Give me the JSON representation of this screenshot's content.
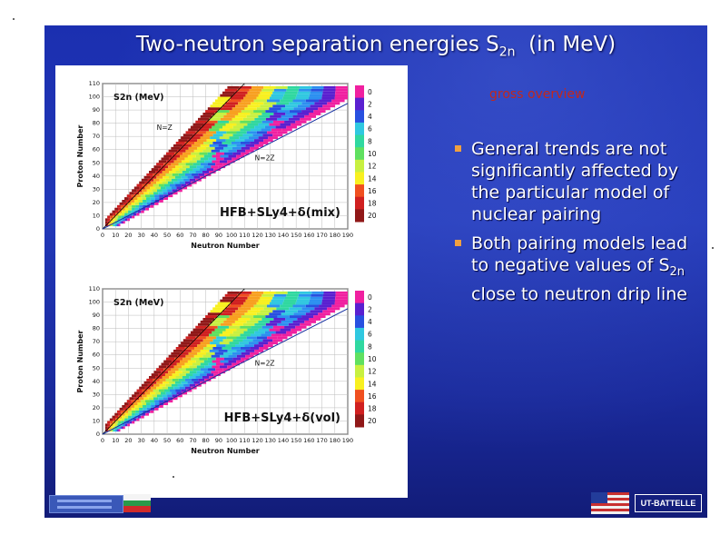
{
  "title": {
    "main": "Two-neutron separation energies S",
    "sub": "2n",
    "tail": "  (in MeV)"
  },
  "subtitle": "gross overview",
  "bullets": [
    {
      "icon": "square-bullet-icon",
      "text": "General trends are not significantly affected by the particular model of nuclear pairing"
    },
    {
      "icon": "square-bullet-icon",
      "text_before": "Both pairing models lead to negative values of S",
      "text_sub": "2n",
      "text_after": " close to neutron drip line"
    }
  ],
  "colors": {
    "slide_bg": "#1b2fb0",
    "subtitle": "#c2281c",
    "bullet": "#f0a040",
    "text": "#ffffff"
  },
  "logos": [
    "logo-left",
    "bulgaria-flag-icon",
    "us-flag-icon",
    "ut-battelle-logo"
  ],
  "logo_ut_text": "UT-BATTELLE",
  "chart_data": [
    {
      "type": "heatmap",
      "xlabel": "Neutron Number",
      "ylabel": "Proton Number",
      "x_ticks": [
        0,
        10,
        20,
        30,
        40,
        50,
        60,
        70,
        80,
        90,
        100,
        110,
        120,
        130,
        140,
        150,
        160,
        170,
        180,
        190
      ],
      "y_ticks": [
        0,
        10,
        20,
        30,
        40,
        50,
        60,
        70,
        80,
        90,
        100,
        110
      ],
      "xlim": [
        0,
        190
      ],
      "ylim": [
        0,
        110
      ],
      "inner_label": "S2n (MeV)",
      "line_labels": [
        "N=Z",
        "N=2Z"
      ],
      "model_label": "HFB+SLy4+δ(mix)",
      "colorbar_ticks": [
        0,
        2,
        4,
        6,
        8,
        10,
        12,
        14,
        16,
        18,
        20
      ]
    },
    {
      "type": "heatmap",
      "xlabel": "Neutron Number",
      "ylabel": "Proton Number",
      "x_ticks": [
        0,
        10,
        20,
        30,
        40,
        50,
        60,
        70,
        80,
        90,
        100,
        110,
        120,
        130,
        140,
        150,
        160,
        170,
        180,
        190
      ],
      "y_ticks": [
        0,
        10,
        20,
        30,
        40,
        50,
        60,
        70,
        80,
        90,
        100,
        110
      ],
      "xlim": [
        0,
        190
      ],
      "ylim": [
        0,
        110
      ],
      "inner_label": "S2n (MeV)",
      "line_labels": [
        "N=2Z"
      ],
      "model_label": "HFB+SLy4+δ(vol)",
      "colorbar_ticks": [
        0,
        2,
        4,
        6,
        8,
        10,
        12,
        14,
        16,
        18,
        20
      ]
    }
  ]
}
